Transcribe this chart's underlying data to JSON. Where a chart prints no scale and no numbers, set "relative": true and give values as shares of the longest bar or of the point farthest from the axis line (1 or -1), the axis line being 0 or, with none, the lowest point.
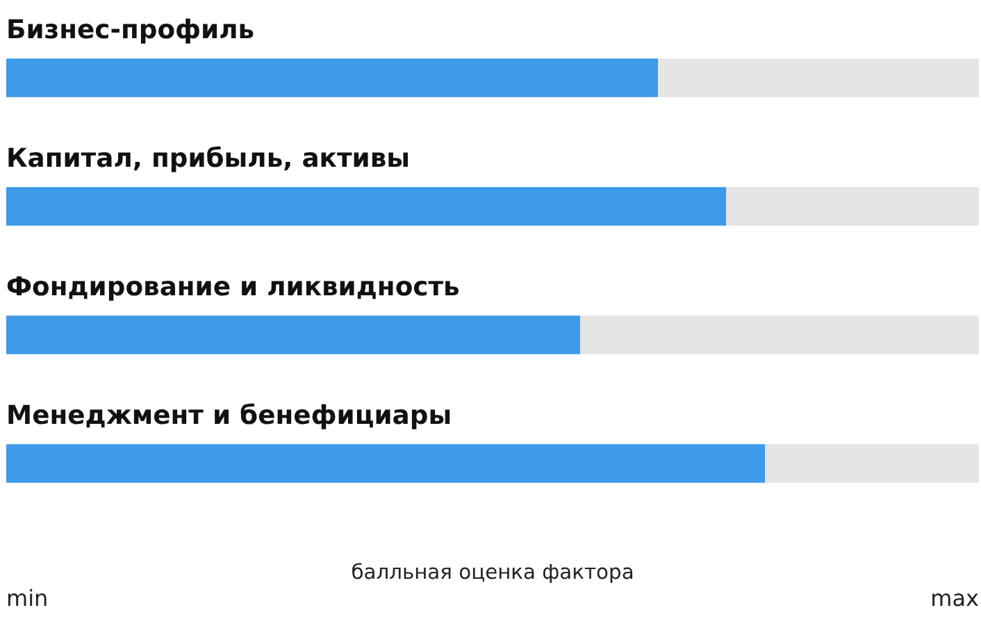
{
  "chart_data": {
    "type": "bar",
    "orientation": "horizontal",
    "stacked": true,
    "relative": true,
    "categories": [
      "Бизнес-профиль",
      "Капитал, прибыль, активы",
      "Фондирование и ликвидность",
      "Менеджмент и бенефициары"
    ],
    "series": [
      {
        "color": "#3d9be9",
        "values": [
          0.67,
          0.74,
          0.59,
          0.78
        ]
      },
      {
        "color": "#e5e5e5",
        "values": [
          0.33,
          0.26,
          0.41,
          0.22
        ]
      }
    ],
    "xlabel": "балльная оценка фактора",
    "annotations": [
      "min",
      "max"
    ],
    "grid": false
  }
}
